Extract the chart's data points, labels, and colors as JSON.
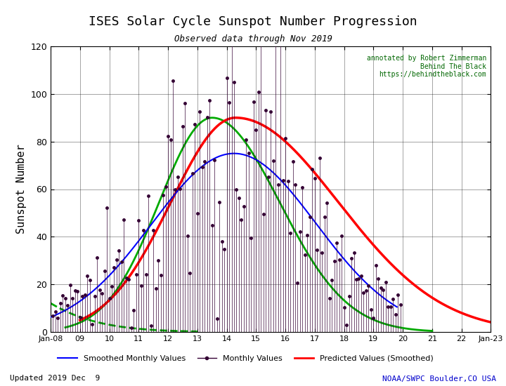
{
  "title": "ISES Solar Cycle Sunspot Number Progression",
  "subtitle": "Observed data through Nov 2019",
  "ylabel": "Sunspot Number",
  "annotation_text": "annotated by Robert Zimmerman\nBehind The Black\nhttps://behindtheblack.com",
  "footer_left": "Updated 2019 Dec  9",
  "footer_right": "NOAA/SWPC Boulder,CO USA",
  "xlim_start": 2008.0,
  "xlim_end": 2023.0,
  "ylim": [
    0,
    120
  ],
  "yticks": [
    0,
    20,
    40,
    60,
    80,
    100,
    120
  ],
  "xtick_years": [
    2008,
    2009,
    2010,
    2011,
    2012,
    2013,
    2014,
    2015,
    2016,
    2017,
    2018,
    2019,
    2020,
    2021,
    2022,
    2023
  ],
  "xtick_labels": [
    "Jan-08",
    "09",
    "10",
    "11",
    "12",
    "13",
    "14",
    "15",
    "16",
    "17",
    "18",
    "19",
    "20",
    "21",
    "22",
    "Jan-23"
  ],
  "bg_color": "#ffffff",
  "grid_color": "#000000",
  "smoothed_color": "#0000ff",
  "monthly_color": "#330033",
  "predicted_color": "#ff0000",
  "green_curve_color": "#00aa00",
  "annotation_color": "#006600",
  "footer_right_color": "#0000cc",
  "smoothed_linewidth": 1.5,
  "predicted_linewidth": 2.5,
  "green_linewidth": 2.0
}
